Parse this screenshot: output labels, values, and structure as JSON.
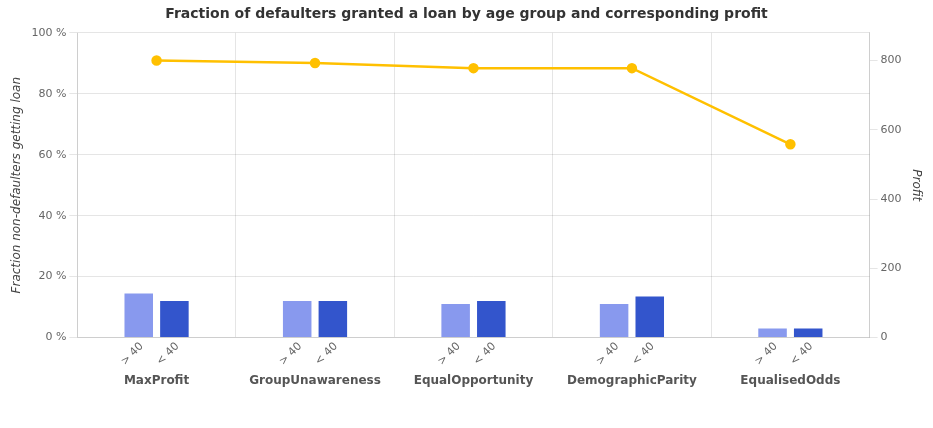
{
  "chart_data": {
    "type": "bar",
    "title": "Fraction of defaulters granted a loan by age group and corresponding profit",
    "ylabel": "Fraction non-defaulters getting loan",
    "y2label": "Profit",
    "categories": [
      "MaxProfit",
      "GroupUnawareness",
      "EqualOpportunity",
      "DemographicParity",
      "EqualisedOdds"
    ],
    "series": [
      {
        "name": "> 40",
        "color": "#8899ee",
        "values": [
          0.145,
          0.12,
          0.11,
          0.11,
          0.03
        ]
      },
      {
        "name": "< 40",
        "color": "#3355cc",
        "values": [
          0.12,
          0.12,
          0.12,
          0.135,
          0.03
        ]
      },
      {
        "type": "line",
        "axis": "y2",
        "color": "#FFC000",
        "marker": "circle",
        "values": [
          800,
          793,
          778,
          778,
          558
        ]
      }
    ],
    "ylim": [
      0,
      1.0
    ],
    "yticks": [
      {
        "value": 0,
        "label": "0 %"
      },
      {
        "value": 0.2,
        "label": "20 %"
      },
      {
        "value": 0.4,
        "label": "40 %"
      },
      {
        "value": 0.6,
        "label": "60 %"
      },
      {
        "value": 0.8,
        "label": "80 %"
      },
      {
        "value": 1.0,
        "label": "100 %"
      }
    ],
    "y2lim": [
      0,
      880
    ],
    "y2ticks": [
      0,
      200,
      400,
      600,
      800
    ],
    "grid": true
  }
}
